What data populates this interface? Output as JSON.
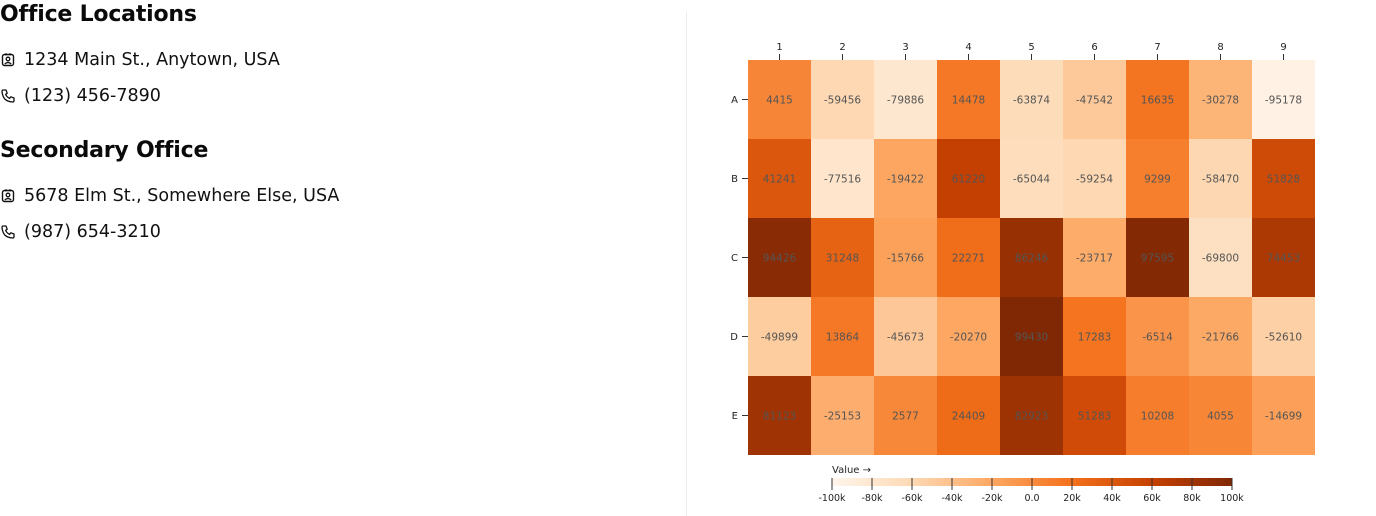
{
  "offices": [
    {
      "title": "Office Locations",
      "address": "1234 Main St., Anytown, USA",
      "phone": "(123) 456-7890"
    },
    {
      "title": "Secondary Office",
      "address": "5678 Elm St., Somewhere Else, USA",
      "phone": "(987) 654-3210"
    }
  ],
  "chart_data": {
    "type": "heatmap",
    "x_categories": [
      "1",
      "2",
      "3",
      "4",
      "5",
      "6",
      "7",
      "8",
      "9"
    ],
    "y_categories": [
      "A",
      "B",
      "C",
      "D",
      "E"
    ],
    "values": [
      [
        4415,
        -59456,
        -79886,
        14478,
        -63874,
        -47542,
        16635,
        -30278,
        -95178
      ],
      [
        41241,
        -77516,
        -19422,
        61220,
        -65044,
        -59254,
        9299,
        -58470,
        51828
      ],
      [
        94426,
        31248,
        -15766,
        22271,
        86246,
        -23717,
        97595,
        -69800,
        74453
      ],
      [
        -49899,
        13864,
        -45673,
        -20270,
        99430,
        17283,
        -6514,
        -21766,
        -52610
      ],
      [
        81123,
        -25153,
        2577,
        24409,
        82923,
        51283,
        10208,
        4055,
        -14699
      ]
    ],
    "color_scale": {
      "label": "Value →",
      "domain": [
        -100000,
        100000
      ],
      "scheme": "oranges",
      "stops": [
        "#fff5eb",
        "#fdd9b4",
        "#fda762",
        "#f3701b",
        "#c54102",
        "#7f2704"
      ]
    },
    "legend_ticks": [
      "-100k",
      "-80k",
      "-60k",
      "-40k",
      "-20k",
      "0.0",
      "20k",
      "40k",
      "60k",
      "80k",
      "100k"
    ],
    "legend_placement": "bottom"
  }
}
